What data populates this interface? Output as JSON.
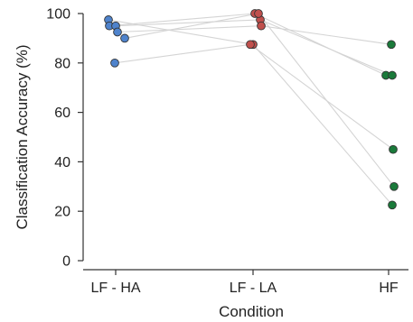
{
  "chart_data": {
    "type": "scatter",
    "title": "",
    "xlabel": "Condition",
    "ylabel": "Classification Accuracy (%)",
    "ylim": [
      0,
      100
    ],
    "yticks": [
      "0",
      "20",
      "40",
      "60",
      "80",
      "100"
    ],
    "categories": [
      "LF - HA",
      "LF - LA",
      "HF"
    ],
    "grid": false,
    "legend": "none",
    "colors": {
      "LF - HA": "#4f83cc",
      "LF - LA": "#c0504d",
      "HF": "#1a7a3a"
    },
    "connector_color": "#d4d4d4",
    "subjects": [
      {
        "values": [
          97.5,
          87.5,
          22.5
        ]
      },
      {
        "values": [
          95.0,
          100.0,
          75.0
        ]
      },
      {
        "values": [
          95.0,
          97.5,
          75.0
        ]
      },
      {
        "values": [
          92.5,
          95.0,
          87.5
        ]
      },
      {
        "values": [
          90.0,
          100.0,
          30.0
        ]
      },
      {
        "values": [
          80.0,
          87.5,
          45.0
        ]
      }
    ]
  }
}
